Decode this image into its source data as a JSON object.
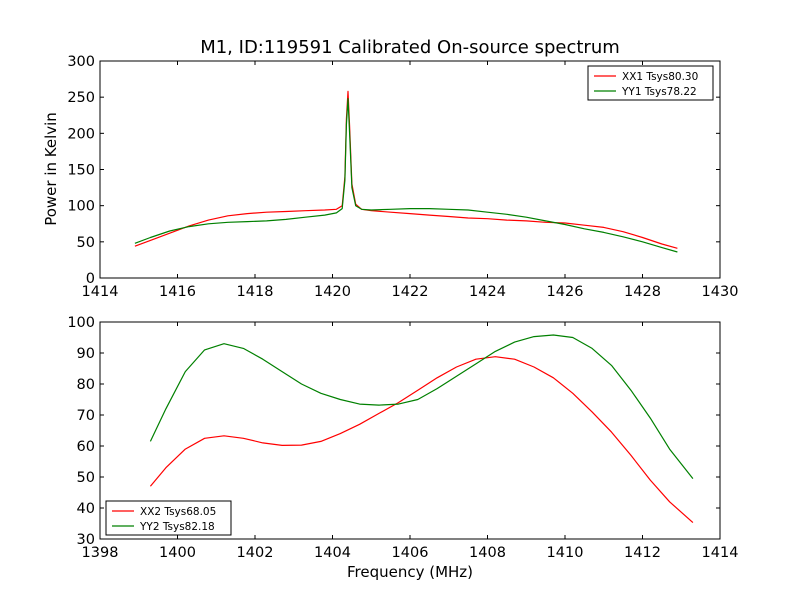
{
  "figure": {
    "title": "M1, ID:119591 Calibrated On-source spectrum",
    "xlabel": "Frequency (MHz)",
    "ylabel": "Power in Kelvin"
  },
  "chart_data": [
    {
      "type": "line",
      "title": "M1, ID:119591 Calibrated On-source spectrum",
      "xlabel": "",
      "ylabel": "Power in Kelvin",
      "xlim": [
        1414,
        1430
      ],
      "ylim": [
        0,
        300
      ],
      "xticks": [
        1414,
        1416,
        1418,
        1420,
        1422,
        1424,
        1426,
        1428,
        1430
      ],
      "yticks": [
        0,
        50,
        100,
        150,
        200,
        250,
        300
      ],
      "legend_position": "top-right",
      "series": [
        {
          "name": "XX1 Tsys80.30",
          "color": "#ff0000",
          "x": [
            1414.9,
            1415.3,
            1415.8,
            1416.3,
            1416.8,
            1417.3,
            1417.8,
            1418.3,
            1418.8,
            1419.3,
            1419.8,
            1420.1,
            1420.25,
            1420.32,
            1420.36,
            1420.4,
            1420.44,
            1420.5,
            1420.6,
            1420.75,
            1421.0,
            1421.5,
            1422.0,
            1422.5,
            1423.0,
            1423.5,
            1424.0,
            1424.5,
            1425.0,
            1425.5,
            1426.0,
            1426.5,
            1427.0,
            1427.5,
            1428.0,
            1428.5,
            1428.9
          ],
          "y": [
            44,
            52,
            62,
            72,
            80,
            86,
            89,
            91,
            92,
            93,
            94,
            95,
            100,
            140,
            220,
            258,
            210,
            130,
            102,
            95,
            93,
            91,
            89,
            87,
            85,
            83,
            82,
            80,
            79,
            77,
            76,
            73,
            70,
            64,
            56,
            47,
            41
          ]
        },
        {
          "name": "YY1 Tsys78.22",
          "color": "#008000",
          "x": [
            1414.9,
            1415.3,
            1415.8,
            1416.3,
            1416.8,
            1417.3,
            1417.8,
            1418.3,
            1418.8,
            1419.3,
            1419.8,
            1420.1,
            1420.25,
            1420.32,
            1420.36,
            1420.4,
            1420.44,
            1420.5,
            1420.6,
            1420.75,
            1421.0,
            1421.5,
            1422.0,
            1422.5,
            1423.0,
            1423.5,
            1424.0,
            1424.5,
            1425.0,
            1425.5,
            1426.0,
            1426.5,
            1427.0,
            1427.5,
            1428.0,
            1428.5,
            1428.9
          ],
          "y": [
            48,
            56,
            65,
            71,
            75,
            77,
            78,
            79,
            81,
            84,
            87,
            90,
            96,
            135,
            212,
            248,
            200,
            125,
            100,
            95,
            94,
            95,
            96,
            96,
            95,
            94,
            91,
            88,
            84,
            79,
            74,
            68,
            63,
            57,
            50,
            42,
            36
          ]
        }
      ]
    },
    {
      "type": "line",
      "title": "",
      "xlabel": "Frequency (MHz)",
      "ylabel": "",
      "xlim": [
        1398,
        1414
      ],
      "ylim": [
        30,
        100
      ],
      "xticks": [
        1398,
        1400,
        1402,
        1404,
        1406,
        1408,
        1410,
        1412,
        1414
      ],
      "yticks": [
        30,
        40,
        50,
        60,
        70,
        80,
        90,
        100
      ],
      "legend_position": "bottom-left",
      "series": [
        {
          "name": "XX2 Tsys68.05",
          "color": "#ff0000",
          "x": [
            1399.3,
            1399.7,
            1400.2,
            1400.7,
            1401.2,
            1401.7,
            1402.2,
            1402.7,
            1403.2,
            1403.7,
            1404.2,
            1404.7,
            1405.2,
            1405.7,
            1406.2,
            1406.7,
            1407.2,
            1407.7,
            1408.2,
            1408.7,
            1409.2,
            1409.7,
            1410.2,
            1410.7,
            1411.2,
            1411.7,
            1412.2,
            1412.7,
            1413.3
          ],
          "y": [
            47,
            53,
            59,
            62.5,
            63.3,
            62.5,
            61,
            60.2,
            60.3,
            61.5,
            64,
            67,
            70.5,
            74,
            78,
            82,
            85.5,
            88,
            88.8,
            88,
            85.5,
            82,
            77,
            71,
            64.5,
            57,
            49,
            42,
            35.3
          ]
        },
        {
          "name": "YY2 Tsys82.18",
          "color": "#008000",
          "x": [
            1399.3,
            1399.7,
            1400.2,
            1400.7,
            1401.2,
            1401.7,
            1402.2,
            1402.7,
            1403.2,
            1403.7,
            1404.2,
            1404.7,
            1405.2,
            1405.7,
            1406.2,
            1406.7,
            1407.2,
            1407.7,
            1408.2,
            1408.7,
            1409.2,
            1409.7,
            1410.2,
            1410.7,
            1411.2,
            1411.7,
            1412.2,
            1412.7,
            1413.3
          ],
          "y": [
            61.5,
            72,
            84,
            91,
            93,
            91.5,
            88,
            84,
            80,
            77,
            75,
            73.5,
            73.2,
            73.5,
            75,
            78.5,
            82.5,
            86.5,
            90.5,
            93.5,
            95.3,
            95.8,
            95,
            91.5,
            86,
            78,
            69,
            59,
            49.5
          ]
        }
      ]
    }
  ]
}
